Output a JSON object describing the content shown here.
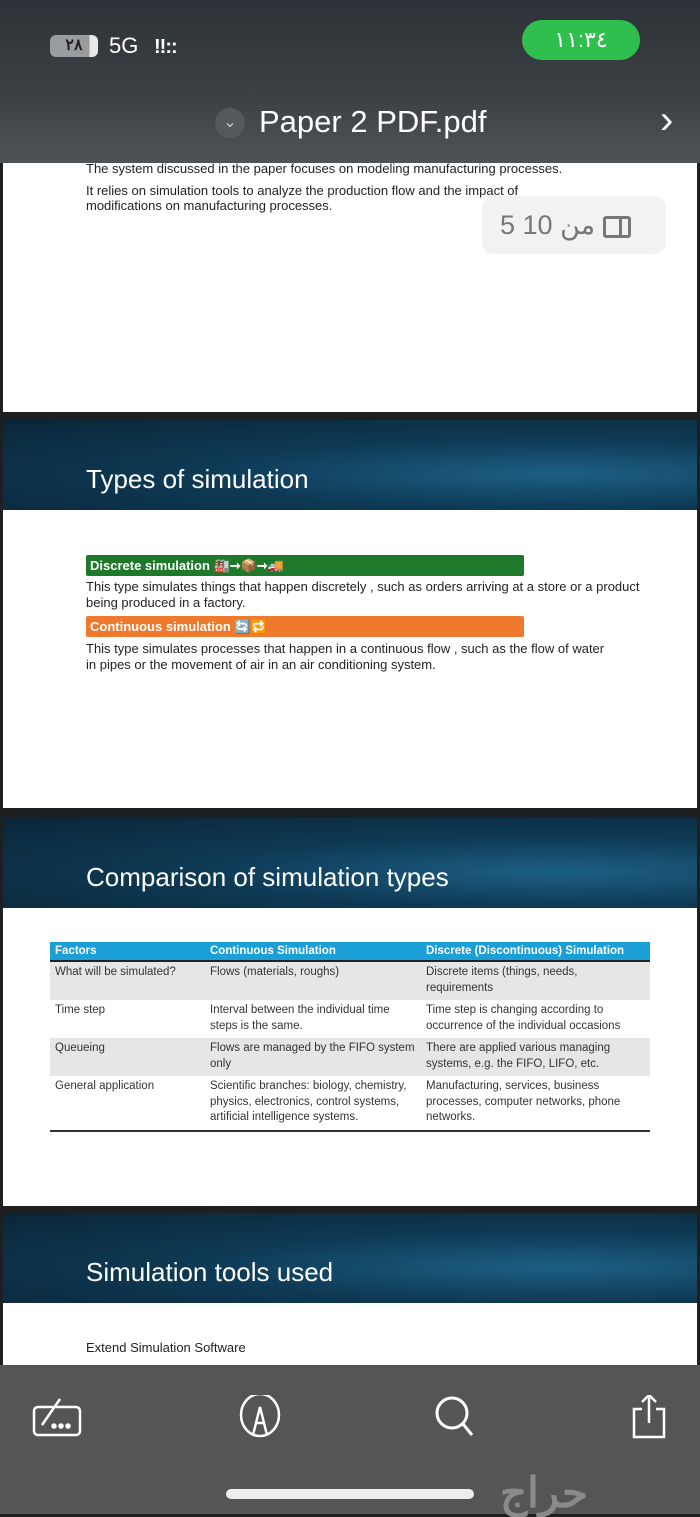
{
  "status": {
    "battery": "٢٨",
    "network": "5G",
    "signal": "!!::",
    "time": "١١:٣٤"
  },
  "header": {
    "title": "Paper 2 PDF.pdf"
  },
  "page_indicator": "5 من 10",
  "page1": {
    "line1": "The system discussed in the paper focuses on modeling manufacturing processes.",
    "line2": "It relies on simulation tools to analyze the production flow and the impact of modifications on manufacturing processes."
  },
  "slide2": {
    "title": "Types of simulation",
    "discrete_label": "Discrete simulation 🏭➞📦➞🚚",
    "discrete_text": "This type simulates things that happen discretely , such as orders arriving at a store or a product being produced in a factory.",
    "continuous_label": "Continuous simulation 🔄🔁",
    "continuous_text": "This type simulates processes that happen in a continuous flow , such as the flow of water in pipes or the movement of air in an air conditioning system.",
    "colors": {
      "discrete": "#1e7a2a",
      "continuous": "#ef7a2e"
    }
  },
  "slide3": {
    "title": "Comparison of simulation types",
    "headers": [
      "Factors",
      "Continuous Simulation",
      "Discrete (Discontinuous) Simulation"
    ],
    "rows": [
      [
        "What will be simulated?",
        "Flows (materials, roughs)",
        "Discrete items (things, needs, requirements"
      ],
      [
        "Time step",
        "Interval between the individual time steps is the same.",
        "Time step is changing according to occurrence of the individual occasions"
      ],
      [
        "Queueing",
        "Flows are managed by the FIFO system only",
        "There are applied various managing systems, e.g. the FIFO, LIFO, etc."
      ],
      [
        "General application",
        "Scientific branches: biology, chemistry, physics, electronics, control systems, artificial intelligence systems.",
        "Manufacturing, services, business processes, computer networks, phone networks."
      ]
    ]
  },
  "slide4": {
    "title": "Simulation tools used",
    "item": "Extend Simulation Software"
  },
  "toolbar": [
    "markup-keyboard-icon",
    "pen-icon",
    "search-icon",
    "share-icon"
  ],
  "watermark": "حراج"
}
